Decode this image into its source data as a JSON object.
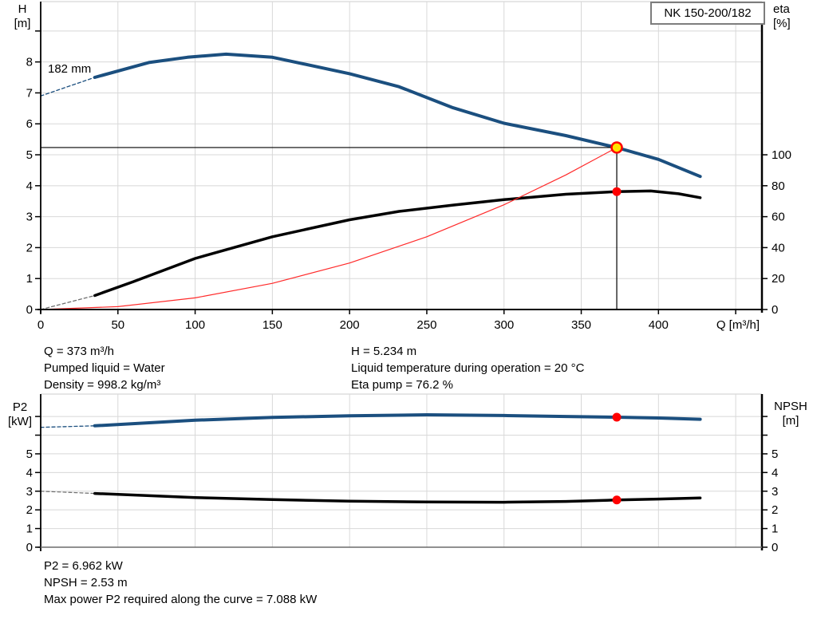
{
  "pump_model": "NK 150-200/182",
  "curve_label": "182 mm",
  "labels": {
    "h_axis": [
      "H",
      "[m]"
    ],
    "eta_axis": [
      "eta",
      "[%]"
    ],
    "q_axis": "Q [m³/h]",
    "p2_axis": [
      "P2",
      "[kW]"
    ],
    "npsh_axis": [
      "NPSH",
      "[m]"
    ]
  },
  "info_top": {
    "left": [
      "Q = 373 m³/h",
      "Pumped liquid = Water",
      "Density = 998.2 kg/m³"
    ],
    "right": [
      "H = 5.234 m",
      "Liquid temperature during operation = 20 °C",
      "Eta pump = 76.2 %"
    ]
  },
  "info_bottom": [
    "P2 = 6.962 kW",
    "NPSH = 2.53 m",
    "Max power P2 required along the curve = 7.088 kW"
  ],
  "colors": {
    "blue": "#1b4f7f",
    "black": "#000000",
    "gray": "#6e6e6e",
    "red": "#ff2a2a",
    "marker_red": "#ff0000",
    "marker_yellow": "#ffe400",
    "grid": "#d8d8d8",
    "axis": "#000000"
  },
  "chart_data": [
    {
      "type": "line",
      "title": "NK 150-200/182 pump performance: head and efficiency vs flow",
      "x_axis": {
        "label": "Q [m³/h]",
        "min": 0,
        "max": 467,
        "show_ticks": true,
        "ticks": [
          {
            "v": 0,
            "label": "0"
          },
          {
            "v": 50,
            "label": "50"
          },
          {
            "v": 100,
            "label": "100"
          },
          {
            "v": 150,
            "label": "150"
          },
          {
            "v": 200,
            "label": "200"
          },
          {
            "v": 250,
            "label": "250"
          },
          {
            "v": 300,
            "label": "300"
          },
          {
            "v": 350,
            "label": "350"
          },
          {
            "v": 400,
            "label": "400"
          },
          {
            "v": 450,
            "label": ""
          }
        ],
        "gridlines": [
          50,
          100,
          150,
          200,
          250,
          300,
          350,
          400,
          450
        ]
      },
      "left_axis": {
        "label": "H [m]",
        "min": 0,
        "max": 9.95,
        "ticks": [
          {
            "v": 0,
            "label": "0"
          },
          {
            "v": 1,
            "label": "1"
          },
          {
            "v": 2,
            "label": "2"
          },
          {
            "v": 3,
            "label": "3"
          },
          {
            "v": 4,
            "label": "4"
          },
          {
            "v": 5,
            "label": "5"
          },
          {
            "v": 6,
            "label": "6"
          },
          {
            "v": 7,
            "label": "7"
          },
          {
            "v": 8,
            "label": "8"
          },
          {
            "v": 9,
            "label": ""
          }
        ],
        "gridlines": [
          1,
          2,
          3,
          4,
          5,
          6,
          7,
          8,
          9
        ]
      },
      "right_axis": {
        "label": "eta [%]",
        "min": 0,
        "max": 199,
        "ticks": [
          {
            "v": 0,
            "label": "0"
          },
          {
            "v": 20,
            "label": "20"
          },
          {
            "v": 40,
            "label": "40"
          },
          {
            "v": 60,
            "label": "60"
          },
          {
            "v": 80,
            "label": "80"
          },
          {
            "v": 100,
            "label": "100"
          }
        ]
      },
      "series": [
        {
          "name": "head-curve-dashed-extension",
          "axis": "left",
          "color": "blue",
          "width": 1.3,
          "dash": "4 3",
          "points": [
            [
              0,
              6.9
            ],
            [
              35,
              7.5
            ]
          ]
        },
        {
          "name": "head-curve-182mm",
          "axis": "left",
          "color": "blue",
          "width": 4,
          "points": [
            [
              35,
              7.5
            ],
            [
              70,
              7.98
            ],
            [
              95,
              8.15
            ],
            [
              120,
              8.25
            ],
            [
              150,
              8.15
            ],
            [
              200,
              7.62
            ],
            [
              232,
              7.2
            ],
            [
              267,
              6.52
            ],
            [
              300,
              6.02
            ],
            [
              340,
              5.62
            ],
            [
              373,
              5.234
            ],
            [
              400,
              4.85
            ],
            [
              427,
              4.3
            ]
          ]
        },
        {
          "name": "eta-curve-dashed-extension",
          "axis": "right",
          "color": "gray",
          "width": 1.2,
          "dash": "4 3",
          "points": [
            [
              0,
              0
            ],
            [
              35,
              9
            ]
          ]
        },
        {
          "name": "eta-curve",
          "axis": "right",
          "color": "black",
          "width": 3.5,
          "points": [
            [
              35,
              9
            ],
            [
              60,
              18
            ],
            [
              100,
              33
            ],
            [
              150,
              47
            ],
            [
              200,
              58
            ],
            [
              232,
              63.4
            ],
            [
              267,
              67.5
            ],
            [
              300,
              71
            ],
            [
              340,
              74.5
            ],
            [
              373,
              76.2
            ],
            [
              395,
              76.6
            ],
            [
              413,
              74.8
            ],
            [
              427,
              72.3
            ]
          ]
        },
        {
          "name": "system-curve",
          "axis": "left",
          "color": "red",
          "width": 1.2,
          "points": [
            [
              0,
              0
            ],
            [
              50,
              0.094
            ],
            [
              100,
              0.376
            ],
            [
              150,
              0.846
            ],
            [
              200,
              1.504
            ],
            [
              250,
              2.351
            ],
            [
              300,
              3.385
            ],
            [
              340,
              4.349
            ],
            [
              373,
              5.234
            ]
          ]
        }
      ],
      "reference_lines": [
        {
          "name": "duty-head-hline",
          "type": "h",
          "value": 5.234,
          "q_from": 0,
          "q_to": 373
        },
        {
          "name": "duty-flow-vline",
          "type": "v",
          "value": 373,
          "v_from": 0,
          "v_to": 5.234
        }
      ],
      "markers": [
        {
          "name": "duty-point-marker",
          "q": 373,
          "value": 5.234,
          "axis": "left",
          "style": "yellow"
        },
        {
          "name": "eta-point-marker",
          "q": 373,
          "value": 76.2,
          "axis": "right",
          "style": "red"
        }
      ]
    },
    {
      "type": "line",
      "title": "Power P2 and NPSH vs flow",
      "x_axis": {
        "label": "",
        "min": 0,
        "max": 467,
        "show_ticks": false,
        "ticks": [],
        "gridlines": [
          50,
          100,
          150,
          200,
          250,
          300,
          350,
          400,
          450
        ]
      },
      "left_axis": {
        "label": "P2 [kW]",
        "min": 0,
        "max": 8.2,
        "ticks": [
          {
            "v": 0,
            "label": "0"
          },
          {
            "v": 1,
            "label": "1"
          },
          {
            "v": 2,
            "label": "2"
          },
          {
            "v": 3,
            "label": "3"
          },
          {
            "v": 4,
            "label": "4"
          },
          {
            "v": 5,
            "label": "5"
          },
          {
            "v": 6,
            "label": ""
          },
          {
            "v": 7,
            "label": ""
          }
        ],
        "gridlines": [
          1,
          2,
          3,
          4,
          5,
          6,
          7
        ]
      },
      "right_axis": {
        "label": "NPSH [m]",
        "min": 0,
        "max": 8.2,
        "ticks": [
          {
            "v": 0,
            "label": "0"
          },
          {
            "v": 1,
            "label": "1"
          },
          {
            "v": 2,
            "label": "2"
          },
          {
            "v": 3,
            "label": "3"
          },
          {
            "v": 4,
            "label": "4"
          },
          {
            "v": 5,
            "label": "5"
          },
          {
            "v": 6,
            "label": ""
          },
          {
            "v": 7,
            "label": ""
          }
        ]
      },
      "series": [
        {
          "name": "p2-curve-dashed-extension",
          "axis": "left",
          "color": "blue",
          "width": 1.3,
          "dash": "4 3",
          "points": [
            [
              0,
              6.42
            ],
            [
              35,
              6.5
            ]
          ]
        },
        {
          "name": "p2-curve",
          "axis": "left",
          "color": "blue",
          "width": 4,
          "points": [
            [
              35,
              6.5
            ],
            [
              100,
              6.8
            ],
            [
              150,
              6.95
            ],
            [
              200,
              7.04
            ],
            [
              250,
              7.088
            ],
            [
              300,
              7.05
            ],
            [
              340,
              7.0
            ],
            [
              373,
              6.962
            ],
            [
              400,
              6.92
            ],
            [
              427,
              6.85
            ]
          ]
        },
        {
          "name": "npsh-curve-dashed-extension",
          "axis": "right",
          "color": "gray",
          "width": 1.2,
          "dash": "4 3",
          "points": [
            [
              0,
              3.0
            ],
            [
              35,
              2.88
            ]
          ]
        },
        {
          "name": "npsh-curve",
          "axis": "right",
          "color": "black",
          "width": 3.5,
          "points": [
            [
              35,
              2.88
            ],
            [
              100,
              2.66
            ],
            [
              150,
              2.55
            ],
            [
              200,
              2.47
            ],
            [
              250,
              2.42
            ],
            [
              300,
              2.41
            ],
            [
              340,
              2.45
            ],
            [
              373,
              2.53
            ],
            [
              400,
              2.58
            ],
            [
              427,
              2.64
            ]
          ]
        }
      ],
      "reference_lines": [],
      "markers": [
        {
          "name": "p2-point-marker",
          "q": 373,
          "value": 6.962,
          "axis": "left",
          "style": "red"
        },
        {
          "name": "npsh-point-marker",
          "q": 373,
          "value": 2.53,
          "axis": "right",
          "style": "red"
        }
      ]
    }
  ]
}
